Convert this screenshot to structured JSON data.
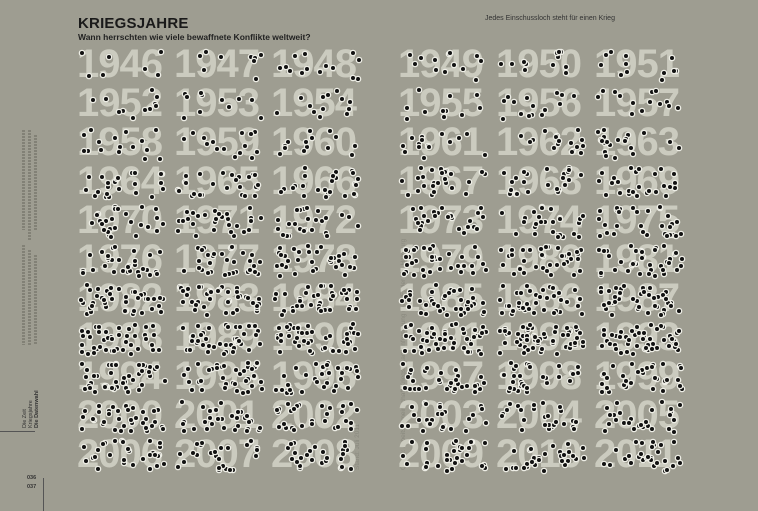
{
  "header": {
    "title": "KRIEGSJAHRE",
    "subtitle": "Wann herrschten wie viele bewaffnete Konflikte weltweit?",
    "legend": "Jedes Einschussloch steht für einen Krieg"
  },
  "notes": {
    "stand": "Stand: Juli 2011",
    "source": "Quelle: Arbeitsgemeinschaft Kriegsursachenforschung (AKUF) der Uni Hamburg"
  },
  "footer": {
    "labels": [
      "Die Zeit",
      "Kriegsjahre",
      "Die Datenwahl"
    ],
    "page_left": "036",
    "page_right": "037"
  },
  "colors": {
    "background": "#9e9d91",
    "year_text": "#cbcbbf",
    "bullet_hole": "#111111"
  },
  "chart_data": {
    "type": "scatter",
    "title": "KRIEGSJAHRE",
    "encoding": "one bullet hole per war",
    "years": [
      "1946",
      "1947",
      "1948",
      "1949",
      "1950",
      "1951",
      "1952",
      "1953",
      "1954",
      "1955",
      "1956",
      "1957",
      "1958",
      "1959",
      "1960",
      "1961",
      "1962",
      "1963",
      "1964",
      "1965",
      "1966",
      "1967",
      "1968",
      "1969",
      "1970",
      "1971",
      "1972",
      "1973",
      "1974",
      "1975",
      "1976",
      "1977",
      "1978",
      "1979",
      "1980",
      "1981",
      "1982",
      "1983",
      "1984",
      "1985",
      "1986",
      "1987",
      "1988",
      "1989",
      "1990",
      "1991",
      "1992",
      "1993",
      "1994",
      "1995",
      "1996",
      "1997",
      "1998",
      "1999",
      "2000",
      "2001",
      "2002",
      "2003",
      "2004",
      "2005",
      "2006",
      "2007",
      "2008",
      "2009",
      "2010",
      "2011"
    ],
    "wars": [
      7,
      9,
      14,
      13,
      12,
      12,
      11,
      11,
      13,
      12,
      15,
      14,
      16,
      15,
      14,
      15,
      17,
      20,
      23,
      26,
      25,
      25,
      24,
      27,
      26,
      28,
      25,
      26,
      27,
      31,
      31,
      32,
      35,
      37,
      36,
      38,
      40,
      40,
      41,
      40,
      41,
      43,
      42,
      42,
      48,
      51,
      55,
      48,
      45,
      39,
      32,
      32,
      32,
      34,
      35,
      31,
      29,
      28,
      26,
      28,
      29,
      26,
      26,
      31,
      30,
      29
    ]
  }
}
